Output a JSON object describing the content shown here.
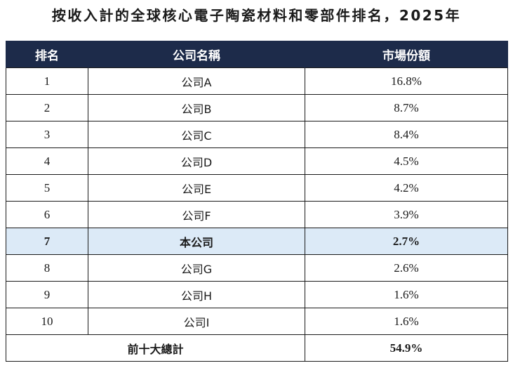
{
  "title": "按收入計的全球核心電子陶瓷材料和零部件排名，2025年",
  "headers": {
    "rank": "排名",
    "company": "公司名稱",
    "share": "市場份額"
  },
  "rows": [
    {
      "rank": "1",
      "company": "公司A",
      "share": "16.8%"
    },
    {
      "rank": "2",
      "company": "公司B",
      "share": "8.7%"
    },
    {
      "rank": "3",
      "company": "公司C",
      "share": "8.4%"
    },
    {
      "rank": "4",
      "company": "公司D",
      "share": "4.5%"
    },
    {
      "rank": "5",
      "company": "公司E",
      "share": "4.2%"
    },
    {
      "rank": "6",
      "company": "公司F",
      "share": "3.9%"
    },
    {
      "rank": "7",
      "company": "本公司",
      "share": "2.7%"
    },
    {
      "rank": "8",
      "company": "公司G",
      "share": "2.6%"
    },
    {
      "rank": "9",
      "company": "公司H",
      "share": "1.6%"
    },
    {
      "rank": "10",
      "company": "公司I",
      "share": "1.6%"
    }
  ],
  "highlight_rank": "7",
  "total": {
    "label": "前十大總計",
    "share": "54.9%"
  },
  "colors": {
    "header_bg": "#1d2b4a",
    "highlight_bg": "#dceaf7"
  }
}
